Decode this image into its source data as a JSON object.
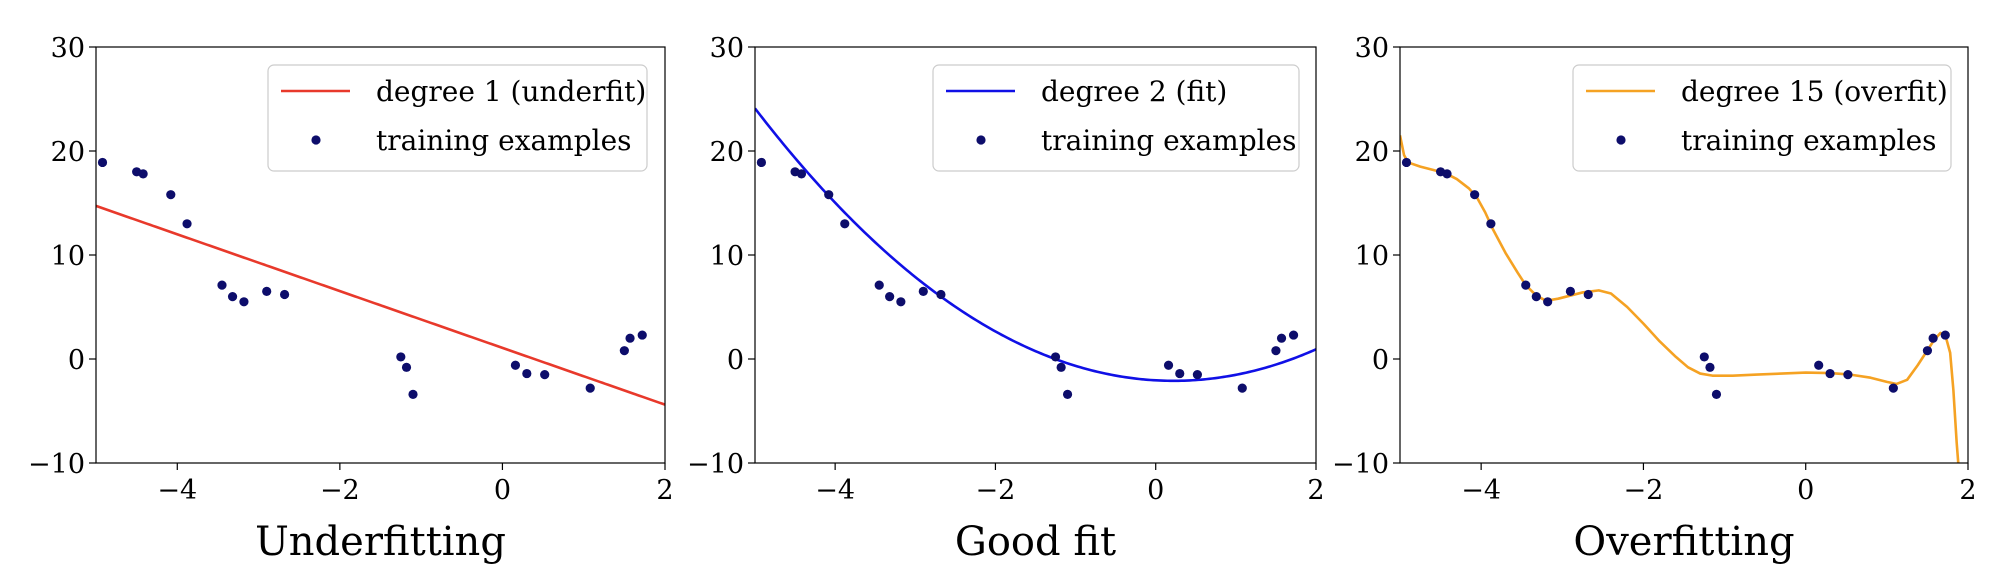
{
  "colors": {
    "points": "#0d0d6b",
    "legend_border": "#cccccc",
    "axis": "#000000"
  },
  "chart_data": [
    {
      "type": "line",
      "title": "Underfitting",
      "xlim": [
        -5,
        2
      ],
      "ylim": [
        -10,
        30
      ],
      "xticks": [
        -4,
        -2,
        0,
        2
      ],
      "xtick_labels": [
        "−4",
        "−2",
        "0",
        "2"
      ],
      "yticks": [
        -10,
        0,
        10,
        20,
        30
      ],
      "ytick_labels": [
        "−10",
        "0",
        "10",
        "20",
        "30"
      ],
      "legend_position": "top-right",
      "fit": {
        "name": "degree 1 (underfit)",
        "color": "#e8392b",
        "degree": 1,
        "coef": [
          1.07,
          -2.73
        ]
      },
      "scatter_name": "training examples",
      "points": [
        [
          -4.92,
          18.9
        ],
        [
          -4.5,
          18.0
        ],
        [
          -4.42,
          17.8
        ],
        [
          -4.08,
          15.8
        ],
        [
          -3.88,
          13.0
        ],
        [
          -3.45,
          7.1
        ],
        [
          -3.32,
          6.0
        ],
        [
          -3.18,
          5.5
        ],
        [
          -2.9,
          6.5
        ],
        [
          -2.68,
          6.2
        ],
        [
          -1.25,
          0.2
        ],
        [
          -1.18,
          -0.8
        ],
        [
          -1.1,
          -3.4
        ],
        [
          0.16,
          -0.6
        ],
        [
          0.3,
          -1.4
        ],
        [
          0.52,
          -1.5
        ],
        [
          1.08,
          -2.8
        ],
        [
          1.5,
          0.8
        ],
        [
          1.57,
          2.0
        ],
        [
          1.72,
          2.3
        ]
      ]
    },
    {
      "type": "line",
      "title": "Good fit",
      "xlim": [
        -5,
        2
      ],
      "ylim": [
        -10,
        30
      ],
      "xticks": [
        -4,
        -2,
        0,
        2
      ],
      "xtick_labels": [
        "−4",
        "−2",
        "0",
        "2"
      ],
      "yticks": [
        -10,
        0,
        10,
        20,
        30
      ],
      "ytick_labels": [
        "−10",
        "0",
        "10",
        "20",
        "30"
      ],
      "legend_position": "top-right",
      "fit": {
        "name": "degree 2 (fit)",
        "color": "#1010e6",
        "degree": 2,
        "coef": [
          -2.05,
          -0.43,
          0.96
        ]
      },
      "scatter_name": "training examples",
      "points": [
        [
          -4.92,
          18.9
        ],
        [
          -4.5,
          18.0
        ],
        [
          -4.42,
          17.8
        ],
        [
          -4.08,
          15.8
        ],
        [
          -3.88,
          13.0
        ],
        [
          -3.45,
          7.1
        ],
        [
          -3.32,
          6.0
        ],
        [
          -3.18,
          5.5
        ],
        [
          -2.9,
          6.5
        ],
        [
          -2.68,
          6.2
        ],
        [
          -1.25,
          0.2
        ],
        [
          -1.18,
          -0.8
        ],
        [
          -1.1,
          -3.4
        ],
        [
          0.16,
          -0.6
        ],
        [
          0.3,
          -1.4
        ],
        [
          0.52,
          -1.5
        ],
        [
          1.08,
          -2.8
        ],
        [
          1.5,
          0.8
        ],
        [
          1.57,
          2.0
        ],
        [
          1.72,
          2.3
        ]
      ]
    },
    {
      "type": "line",
      "title": "Overfitting",
      "xlim": [
        -5,
        2
      ],
      "ylim": [
        -10,
        30
      ],
      "xticks": [
        -4,
        -2,
        0,
        2
      ],
      "xtick_labels": [
        "−4",
        "−2",
        "0",
        "2"
      ],
      "yticks": [
        -10,
        0,
        10,
        20,
        30
      ],
      "ytick_labels": [
        "−10",
        "0",
        "10",
        "20",
        "30"
      ],
      "legend_position": "top-right",
      "fit": {
        "name": "degree 15 (overfit)",
        "color": "#f5a223",
        "degree": 15,
        "curve": [
          [
            -5.0,
            21.5
          ],
          [
            -4.95,
            19.6
          ],
          [
            -4.9,
            18.9
          ],
          [
            -4.75,
            18.5
          ],
          [
            -4.6,
            18.2
          ],
          [
            -4.45,
            17.9
          ],
          [
            -4.3,
            17.3
          ],
          [
            -4.15,
            16.4
          ],
          [
            -4.05,
            15.5
          ],
          [
            -3.95,
            14.1
          ],
          [
            -3.85,
            12.4
          ],
          [
            -3.7,
            10.2
          ],
          [
            -3.55,
            8.3
          ],
          [
            -3.45,
            7.1
          ],
          [
            -3.32,
            6.1
          ],
          [
            -3.2,
            5.6
          ],
          [
            -3.05,
            5.8
          ],
          [
            -2.9,
            6.1
          ],
          [
            -2.75,
            6.4
          ],
          [
            -2.55,
            6.6
          ],
          [
            -2.4,
            6.3
          ],
          [
            -2.2,
            5.0
          ],
          [
            -2.0,
            3.4
          ],
          [
            -1.8,
            1.7
          ],
          [
            -1.6,
            0.2
          ],
          [
            -1.45,
            -0.8
          ],
          [
            -1.3,
            -1.4
          ],
          [
            -1.15,
            -1.6
          ],
          [
            -0.9,
            -1.6
          ],
          [
            -0.6,
            -1.5
          ],
          [
            -0.3,
            -1.4
          ],
          [
            0.0,
            -1.3
          ],
          [
            0.3,
            -1.35
          ],
          [
            0.55,
            -1.5
          ],
          [
            0.8,
            -1.8
          ],
          [
            1.0,
            -2.2
          ],
          [
            1.12,
            -2.4
          ],
          [
            1.25,
            -2.0
          ],
          [
            1.38,
            -0.6
          ],
          [
            1.48,
            0.6
          ],
          [
            1.58,
            1.8
          ],
          [
            1.66,
            2.5
          ],
          [
            1.72,
            2.3
          ],
          [
            1.78,
            0.6
          ],
          [
            1.82,
            -3.0
          ],
          [
            1.86,
            -8.0
          ],
          [
            1.88,
            -10.0
          ]
        ]
      },
      "scatter_name": "training examples",
      "points": [
        [
          -4.92,
          18.9
        ],
        [
          -4.5,
          18.0
        ],
        [
          -4.42,
          17.8
        ],
        [
          -4.08,
          15.8
        ],
        [
          -3.88,
          13.0
        ],
        [
          -3.45,
          7.1
        ],
        [
          -3.32,
          6.0
        ],
        [
          -3.18,
          5.5
        ],
        [
          -2.9,
          6.5
        ],
        [
          -2.68,
          6.2
        ],
        [
          -1.25,
          0.2
        ],
        [
          -1.18,
          -0.8
        ],
        [
          -1.1,
          -3.4
        ],
        [
          0.16,
          -0.6
        ],
        [
          0.3,
          -1.4
        ],
        [
          0.52,
          -1.5
        ],
        [
          1.08,
          -2.8
        ],
        [
          1.5,
          0.8
        ],
        [
          1.57,
          2.0
        ],
        [
          1.72,
          2.3
        ]
      ]
    }
  ]
}
